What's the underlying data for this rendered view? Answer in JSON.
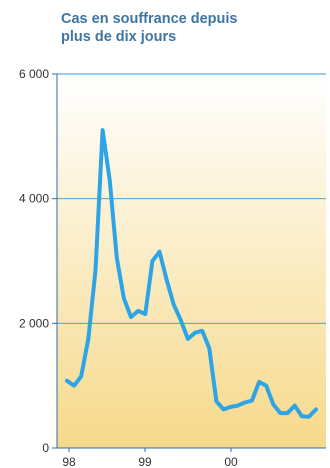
{
  "chart_data": {
    "type": "area",
    "title_lines": [
      "Cas en souffrance depuis",
      "plus de dix jours"
    ],
    "xlabel": "",
    "ylabel": "",
    "ylim": [
      0,
      6000
    ],
    "yticks": [
      {
        "value": 0,
        "label": "0"
      },
      {
        "value": 2000,
        "label": "2 000"
      },
      {
        "value": 4000,
        "label": "4 000"
      },
      {
        "value": 6000,
        "label": "6 000"
      }
    ],
    "xticks": [
      "98",
      "99",
      "00"
    ],
    "grid": true,
    "colors": {
      "line": "#2ea4e6",
      "title": "#3d76a4",
      "grid": "#3d93cf",
      "axis": "#2c6fa8",
      "fill_top": "#ffffff",
      "fill_bottom": "#f6d98a"
    },
    "series": [
      {
        "values": [
          1080,
          1000,
          1150,
          1750,
          2850,
          5100,
          4300,
          3050,
          2400,
          2100,
          2200,
          2150,
          3000,
          3150,
          2700,
          2300,
          2050,
          1750,
          1850,
          1880,
          1600,
          750,
          620,
          660,
          680,
          730,
          760,
          1060,
          1000,
          700,
          560,
          560,
          680,
          510,
          500,
          620
        ]
      }
    ]
  }
}
